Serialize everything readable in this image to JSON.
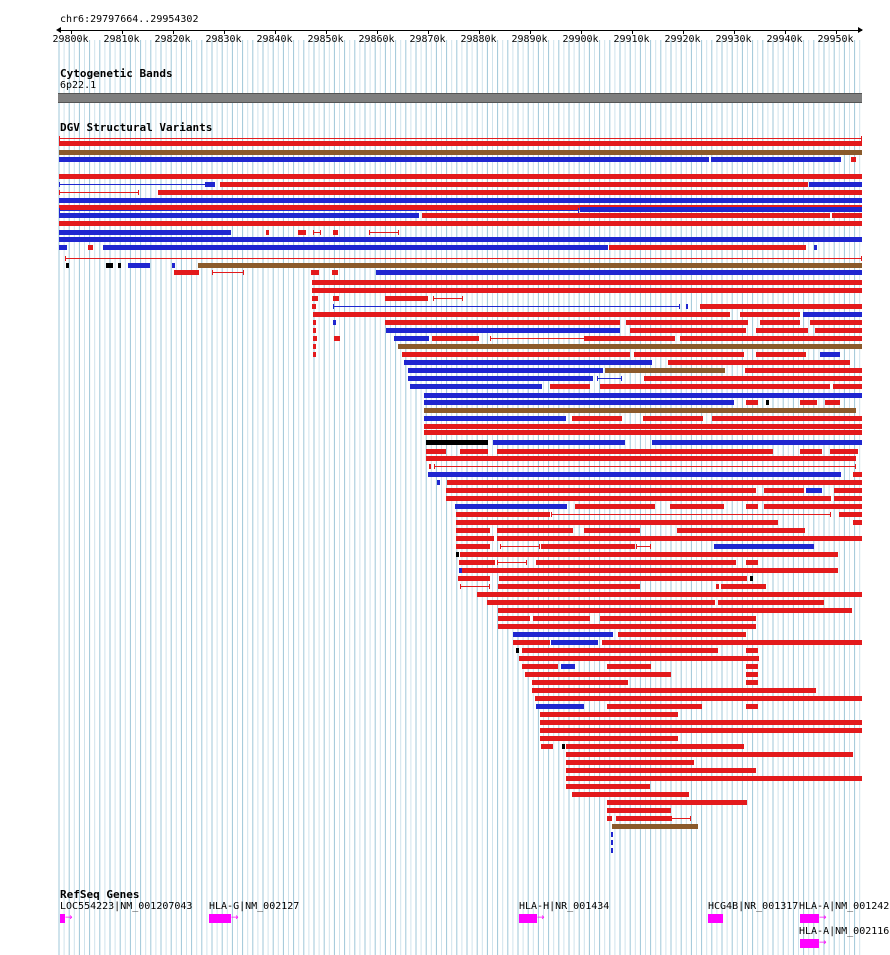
{
  "ruler": {
    "location": "chr6:29797664..29954302",
    "ticks": [
      "29800k",
      "29810k",
      "29820k",
      "29830k",
      "29840k",
      "29850k",
      "29860k",
      "29870k",
      "29880k",
      "29890k",
      "29900k",
      "29910k",
      "29920k",
      "29930k",
      "29940k",
      "29950k"
    ]
  },
  "cytoband": {
    "title": "Cytogenetic Bands",
    "band_label": "6p22.1",
    "color": "#7f7f7f"
  },
  "dgv": {
    "title": "DGV Structural Variants",
    "colors": {
      "loss": "#e31a1c",
      "gain": "#1f26d0",
      "inversion": "#8b5a2b",
      "complex": "#000000"
    }
  },
  "refseq": {
    "title": "RefSeq Genes",
    "genes": [
      {
        "label": "LOC554223|NM_001207043"
      },
      {
        "label": "HLA-G|NM_002127"
      },
      {
        "label": "HLA-H|NR_001434"
      },
      {
        "label": "HCG4B|NR_001317"
      },
      {
        "label": "HLA-A|NM_001242"
      },
      {
        "label": "HLA-A|NM_002116"
      }
    ],
    "color": "#ff00ff"
  }
}
